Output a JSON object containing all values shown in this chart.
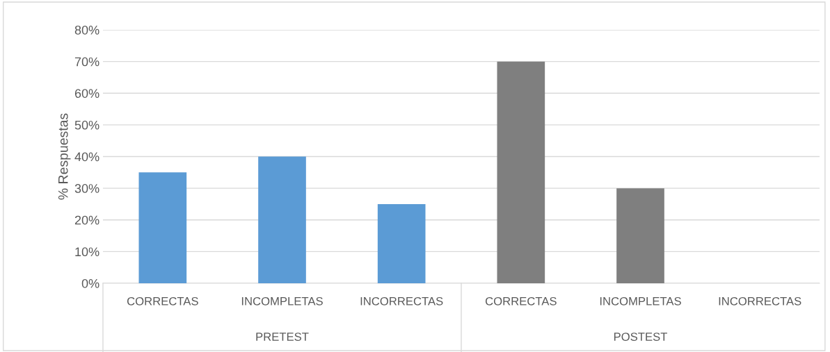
{
  "chart_data": {
    "type": "bar",
    "ylabel": "% Respuestas",
    "categories": [
      "CORRECTAS",
      "INCOMPLETAS",
      "INCORRECTAS",
      "CORRECTAS",
      "INCOMPLETAS",
      "INCORRECTAS"
    ],
    "values": [
      35,
      40,
      25,
      70,
      30,
      0
    ],
    "colors": [
      "#5b9bd5",
      "#5b9bd5",
      "#5b9bd5",
      "#7f7f7f",
      "#7f7f7f",
      "#7f7f7f"
    ],
    "annotations": [
      "PRETEST",
      "POSTEST"
    ],
    "ylim": [
      0,
      80
    ],
    "yticks": [
      {
        "value": 0,
        "label": "0%"
      },
      {
        "value": 10,
        "label": "10%"
      },
      {
        "value": 20,
        "label": "20%"
      },
      {
        "value": 30,
        "label": "30%"
      },
      {
        "value": 40,
        "label": "40%"
      },
      {
        "value": 50,
        "label": "50%"
      },
      {
        "value": 60,
        "label": "60%"
      },
      {
        "value": 70,
        "label": "70%"
      },
      {
        "value": 80,
        "label": "80%"
      }
    ],
    "grid": "y"
  }
}
